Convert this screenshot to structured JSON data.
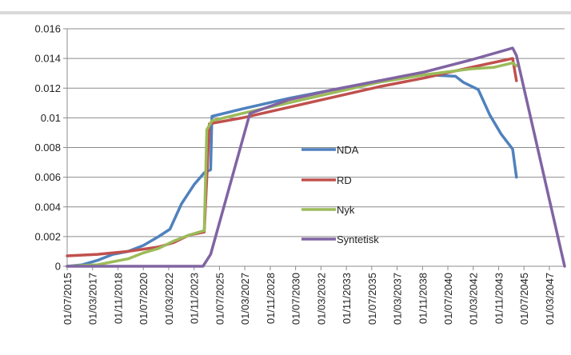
{
  "chart_data": {
    "type": "line",
    "title": "",
    "xlabel": "",
    "ylabel": "",
    "ylim": [
      0,
      0.016
    ],
    "yticks": [
      "0",
      "0.002",
      "0.004",
      "0.006",
      "0.008",
      "0.01",
      "0.012",
      "0.014",
      "0.016"
    ],
    "x_range": [
      "2015-07-01",
      "2048-03-01"
    ],
    "xticks": [
      "01/07/2015",
      "01/03/2017",
      "01/11/2018",
      "01/07/2020",
      "01/03/2022",
      "01/11/2023",
      "01/07/2025",
      "01/03/2027",
      "01/11/2028",
      "01/07/2030",
      "01/03/2032",
      "01/11/2033",
      "01/07/2035",
      "01/03/2037",
      "01/11/2038",
      "01/07/2040",
      "01/03/2042",
      "01/11/2043",
      "01/07/2045",
      "01/03/2047"
    ],
    "grid": "horizontal",
    "legend_position": "center",
    "series": [
      {
        "name": "NDA",
        "color": "#4f81bd",
        "points": [
          [
            "2015-07-01",
            0.0
          ],
          [
            "2016-07-01",
            0.0001
          ],
          [
            "2017-07-01",
            0.0004
          ],
          [
            "2018-07-01",
            0.0008
          ],
          [
            "2019-07-01",
            0.001
          ],
          [
            "2020-07-01",
            0.0014
          ],
          [
            "2021-07-01",
            0.002
          ],
          [
            "2022-04-01",
            0.0025
          ],
          [
            "2023-01-01",
            0.0042
          ],
          [
            "2023-11-01",
            0.0055
          ],
          [
            "2024-07-01",
            0.0063
          ],
          [
            "2024-12-01",
            0.0065
          ],
          [
            "2025-01-01",
            0.0101
          ],
          [
            "2027-01-01",
            0.0106
          ],
          [
            "2030-01-01",
            0.0113
          ],
          [
            "2033-01-01",
            0.0119
          ],
          [
            "2036-01-01",
            0.0125
          ],
          [
            "2039-01-01",
            0.0129
          ],
          [
            "2041-01-01",
            0.0128
          ],
          [
            "2041-07-01",
            0.0124
          ],
          [
            "2042-07-01",
            0.0119
          ],
          [
            "2043-04-01",
            0.0102
          ],
          [
            "2044-01-01",
            0.0089
          ],
          [
            "2044-10-01",
            0.0079
          ],
          [
            "2045-01-01",
            0.006
          ]
        ]
      },
      {
        "name": "RD",
        "color": "#c0504d",
        "points": [
          [
            "2015-07-01",
            0.0007
          ],
          [
            "2017-07-01",
            0.0008
          ],
          [
            "2019-07-01",
            0.001
          ],
          [
            "2021-07-01",
            0.0013
          ],
          [
            "2022-07-01",
            0.0016
          ],
          [
            "2023-07-01",
            0.0021
          ],
          [
            "2024-07-01",
            0.0023
          ],
          [
            "2024-11-01",
            0.0096
          ],
          [
            "2027-01-01",
            0.01
          ],
          [
            "2030-01-01",
            0.0107
          ],
          [
            "2033-01-01",
            0.0114
          ],
          [
            "2036-01-01",
            0.0121
          ],
          [
            "2039-01-01",
            0.0127
          ],
          [
            "2042-01-01",
            0.0134
          ],
          [
            "2044-10-01",
            0.014
          ],
          [
            "2045-01-01",
            0.0125
          ]
        ]
      },
      {
        "name": "Nyk",
        "color": "#9bbb59",
        "points": [
          [
            "2015-07-01",
            0.0
          ],
          [
            "2017-07-01",
            0.0001
          ],
          [
            "2018-07-01",
            0.0003
          ],
          [
            "2019-07-01",
            0.0005
          ],
          [
            "2020-07-01",
            0.0009
          ],
          [
            "2021-07-01",
            0.0012
          ],
          [
            "2022-07-01",
            0.0017
          ],
          [
            "2023-07-01",
            0.0021
          ],
          [
            "2024-07-01",
            0.0024
          ],
          [
            "2024-09-01",
            0.0092
          ],
          [
            "2025-01-01",
            0.0098
          ],
          [
            "2027-01-01",
            0.0103
          ],
          [
            "2030-01-01",
            0.011
          ],
          [
            "2033-01-01",
            0.0117
          ],
          [
            "2036-01-01",
            0.0124
          ],
          [
            "2039-01-01",
            0.0129
          ],
          [
            "2042-01-01",
            0.0133
          ],
          [
            "2043-07-01",
            0.0134
          ],
          [
            "2044-10-01",
            0.0137
          ],
          [
            "2045-01-01",
            0.0135
          ]
        ]
      },
      {
        "name": "Syntetisk",
        "color": "#8064a2",
        "points": [
          [
            "2015-07-01",
            0.0
          ],
          [
            "2024-06-01",
            0.0
          ],
          [
            "2024-12-01",
            0.0008
          ],
          [
            "2027-07-01",
            0.0103
          ],
          [
            "2030-01-01",
            0.0112
          ],
          [
            "2033-01-01",
            0.0119
          ],
          [
            "2036-01-01",
            0.0125
          ],
          [
            "2039-01-01",
            0.0131
          ],
          [
            "2042-01-01",
            0.0139
          ],
          [
            "2044-10-01",
            0.0147
          ],
          [
            "2045-01-01",
            0.0142
          ],
          [
            "2048-03-01",
            0.0
          ]
        ]
      }
    ]
  }
}
